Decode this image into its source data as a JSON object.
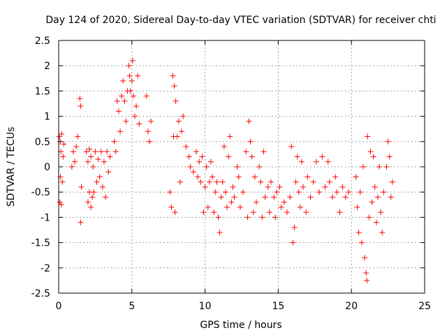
{
  "chart_data": {
    "type": "scatter",
    "title": "Day 124 of 2020, Sidereal Day-to-day VTEC variation (SDTVAR) for receiver chti",
    "xlabel": "GPS time / hours",
    "ylabel": "SDTVAR / TECUs",
    "xlim": [
      0,
      25
    ],
    "ylim": [
      -2.5,
      2.5
    ],
    "xticks": [
      0,
      5,
      10,
      15,
      20,
      25
    ],
    "xtick_labels": [
      "0",
      "5",
      "10",
      "15",
      "20",
      "25"
    ],
    "yticks": [
      -2.5,
      -2,
      -1.5,
      -1,
      -0.5,
      0,
      0.5,
      1,
      1.5,
      2,
      2.5
    ],
    "ytick_labels": [
      "-2.5",
      "-2",
      "-1.5",
      "-1",
      "-0.5",
      "0",
      "0.5",
      "1",
      "1.5",
      "2",
      "2.5"
    ],
    "grid": true,
    "marker": "+",
    "marker_color": "#ff0000",
    "series": [
      {
        "name": "chti",
        "points": [
          [
            0.05,
            0.6
          ],
          [
            0.08,
            -0.7
          ],
          [
            0.1,
            0.5
          ],
          [
            0.12,
            -0.2
          ],
          [
            0.15,
            0.3
          ],
          [
            0.18,
            -0.75
          ],
          [
            0.2,
            0.65
          ],
          [
            0.25,
            -0.3
          ],
          [
            0.3,
            0.2
          ],
          [
            0.35,
            0.45
          ],
          [
            0.9,
            0.0
          ],
          [
            1.0,
            0.3
          ],
          [
            1.1,
            0.1
          ],
          [
            1.2,
            0.4
          ],
          [
            1.3,
            0.6
          ],
          [
            1.45,
            1.35
          ],
          [
            1.5,
            1.2
          ],
          [
            1.5,
            -1.1
          ],
          [
            1.55,
            -0.4
          ],
          [
            1.9,
            0.3
          ],
          [
            2.0,
            -0.7
          ],
          [
            2.0,
            0.1
          ],
          [
            2.1,
            -0.5
          ],
          [
            2.1,
            0.35
          ],
          [
            2.2,
            -0.8
          ],
          [
            2.2,
            0.2
          ],
          [
            2.3,
            -0.6
          ],
          [
            2.35,
            0.0
          ],
          [
            2.4,
            -0.5
          ],
          [
            2.5,
            0.3
          ],
          [
            2.6,
            -0.3
          ],
          [
            2.7,
            0.15
          ],
          [
            2.8,
            -0.2
          ],
          [
            2.9,
            0.3
          ],
          [
            3.0,
            -0.4
          ],
          [
            3.1,
            0.1
          ],
          [
            3.2,
            -0.6
          ],
          [
            3.3,
            0.3
          ],
          [
            3.4,
            -0.1
          ],
          [
            3.5,
            0.2
          ],
          [
            3.8,
            0.5
          ],
          [
            3.9,
            0.3
          ],
          [
            4.0,
            1.3
          ],
          [
            4.1,
            1.1
          ],
          [
            4.2,
            0.7
          ],
          [
            4.3,
            1.4
          ],
          [
            4.4,
            1.7
          ],
          [
            4.5,
            1.3
          ],
          [
            4.6,
            0.9
          ],
          [
            4.7,
            1.5
          ],
          [
            4.8,
            2.0
          ],
          [
            4.85,
            1.8
          ],
          [
            4.9,
            1.5
          ],
          [
            5.0,
            1.7
          ],
          [
            5.05,
            2.1
          ],
          [
            5.1,
            1.4
          ],
          [
            5.2,
            1.0
          ],
          [
            5.3,
            1.2
          ],
          [
            5.4,
            1.8
          ],
          [
            5.5,
            0.85
          ],
          [
            6.0,
            1.4
          ],
          [
            6.1,
            0.7
          ],
          [
            6.2,
            0.5
          ],
          [
            6.3,
            0.9
          ],
          [
            7.6,
            -0.5
          ],
          [
            7.7,
            -0.8
          ],
          [
            7.8,
            1.8
          ],
          [
            7.85,
            0.6
          ],
          [
            7.9,
            1.6
          ],
          [
            7.95,
            -0.9
          ],
          [
            8.0,
            1.3
          ],
          [
            8.1,
            0.6
          ],
          [
            8.2,
            0.9
          ],
          [
            8.3,
            -0.3
          ],
          [
            8.4,
            0.7
          ],
          [
            8.5,
            1.0
          ],
          [
            8.7,
            0.4
          ],
          [
            8.9,
            0.2
          ],
          [
            9.0,
            0.0
          ],
          [
            9.2,
            -0.1
          ],
          [
            9.4,
            0.3
          ],
          [
            9.5,
            -0.2
          ],
          [
            9.6,
            0.1
          ],
          [
            9.7,
            -0.3
          ],
          [
            9.8,
            0.2
          ],
          [
            9.9,
            -0.9
          ],
          [
            10.0,
            -0.4
          ],
          [
            10.1,
            0.0
          ],
          [
            10.2,
            -0.8
          ],
          [
            10.3,
            -0.3
          ],
          [
            10.4,
            0.1
          ],
          [
            10.5,
            -0.2
          ],
          [
            10.6,
            -0.9
          ],
          [
            10.7,
            -0.5
          ],
          [
            10.8,
            -0.3
          ],
          [
            10.9,
            -1.0
          ],
          [
            11.0,
            -1.3
          ],
          [
            11.1,
            -0.6
          ],
          [
            11.2,
            -0.3
          ],
          [
            11.3,
            0.4
          ],
          [
            11.4,
            -0.5
          ],
          [
            11.5,
            -0.8
          ],
          [
            11.6,
            0.2
          ],
          [
            11.7,
            0.6
          ],
          [
            11.8,
            -0.7
          ],
          [
            11.9,
            -0.4
          ],
          [
            12.0,
            -0.6
          ],
          [
            12.2,
            0.0
          ],
          [
            12.3,
            -0.2
          ],
          [
            12.4,
            -0.8
          ],
          [
            12.6,
            -0.5
          ],
          [
            12.8,
            0.3
          ],
          [
            12.9,
            -1.0
          ],
          [
            13.0,
            0.9
          ],
          [
            13.1,
            0.5
          ],
          [
            13.2,
            0.2
          ],
          [
            13.3,
            -0.9
          ],
          [
            13.4,
            -0.2
          ],
          [
            13.5,
            -0.7
          ],
          [
            13.7,
            0.0
          ],
          [
            13.8,
            -0.3
          ],
          [
            13.9,
            -1.0
          ],
          [
            14.0,
            0.3
          ],
          [
            14.1,
            -0.6
          ],
          [
            14.3,
            -0.4
          ],
          [
            14.4,
            -0.9
          ],
          [
            14.5,
            -0.3
          ],
          [
            14.7,
            -0.6
          ],
          [
            14.8,
            -1.0
          ],
          [
            14.9,
            -0.5
          ],
          [
            15.1,
            -0.4
          ],
          [
            15.2,
            -0.8
          ],
          [
            15.4,
            -0.7
          ],
          [
            15.6,
            -0.9
          ],
          [
            15.8,
            -0.6
          ],
          [
            15.9,
            0.4
          ],
          [
            16.0,
            -1.5
          ],
          [
            16.1,
            -1.2
          ],
          [
            16.2,
            -0.3
          ],
          [
            16.3,
            0.2
          ],
          [
            16.4,
            -0.5
          ],
          [
            16.5,
            -0.8
          ],
          [
            16.6,
            0.1
          ],
          [
            16.7,
            -0.4
          ],
          [
            16.9,
            -0.9
          ],
          [
            17.0,
            -0.2
          ],
          [
            17.2,
            -0.6
          ],
          [
            17.4,
            -0.3
          ],
          [
            17.6,
            0.1
          ],
          [
            17.8,
            -0.5
          ],
          [
            18.0,
            0.2
          ],
          [
            18.2,
            -0.4
          ],
          [
            18.4,
            0.1
          ],
          [
            18.5,
            -0.3
          ],
          [
            18.7,
            -0.6
          ],
          [
            18.9,
            -0.2
          ],
          [
            19.0,
            -0.5
          ],
          [
            19.2,
            -0.9
          ],
          [
            19.4,
            -0.4
          ],
          [
            19.6,
            -0.6
          ],
          [
            19.8,
            -0.5
          ],
          [
            20.3,
            -0.2
          ],
          [
            20.4,
            -0.8
          ],
          [
            20.5,
            -1.3
          ],
          [
            20.6,
            -0.5
          ],
          [
            20.7,
            -1.5
          ],
          [
            20.8,
            0.0
          ],
          [
            20.9,
            -1.8
          ],
          [
            21.0,
            -2.1
          ],
          [
            21.05,
            -2.25
          ],
          [
            21.1,
            0.6
          ],
          [
            21.2,
            -1.0
          ],
          [
            21.3,
            0.3
          ],
          [
            21.4,
            -0.7
          ],
          [
            21.5,
            0.2
          ],
          [
            21.6,
            -0.4
          ],
          [
            21.7,
            -1.1
          ],
          [
            21.8,
            -0.6
          ],
          [
            21.9,
            0.0
          ],
          [
            22.0,
            -0.9
          ],
          [
            22.1,
            -1.3
          ],
          [
            22.2,
            -0.5
          ],
          [
            22.4,
            0.0
          ],
          [
            22.5,
            0.5
          ],
          [
            22.6,
            0.2
          ],
          [
            22.7,
            -0.6
          ],
          [
            22.8,
            -0.3
          ]
        ]
      }
    ]
  }
}
